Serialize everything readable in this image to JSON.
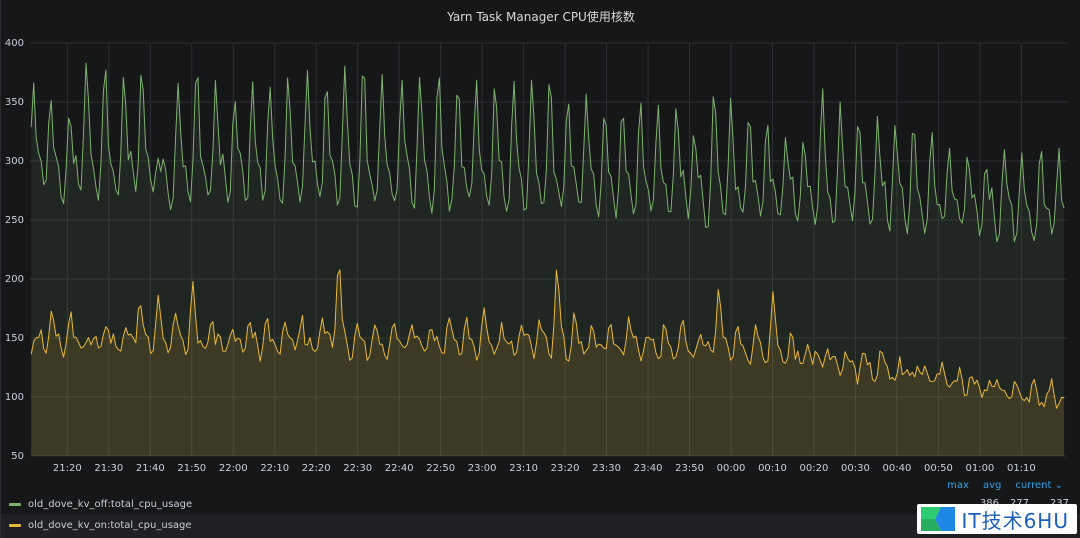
{
  "panel": {
    "title": "Yarn Task Manager CPU使用核数"
  },
  "legend": {
    "headers": [
      "max",
      "avg",
      "current"
    ],
    "series": [
      {
        "name": "old_dove_kv_off:total_cpu_usage",
        "color": "#7eb26d",
        "max": "386",
        "avg": "277",
        "current": "237"
      },
      {
        "name": "old_dove_kv_on:total_cpu_usage",
        "color": "#eab839"
      }
    ]
  },
  "watermark": {
    "text": "IT技术6HU"
  },
  "chart_data": {
    "type": "area",
    "ylim": [
      50,
      400
    ],
    "yticks": [
      50,
      100,
      150,
      200,
      250,
      300,
      350,
      400
    ],
    "grid": true,
    "legend_placement": "bottom",
    "xlabels": [
      "21:20",
      "21:30",
      "21:40",
      "21:50",
      "22:00",
      "22:10",
      "22:20",
      "22:30",
      "22:40",
      "22:50",
      "23:00",
      "23:10",
      "23:20",
      "23:30",
      "23:40",
      "23:50",
      "00:00",
      "00:10",
      "00:20",
      "00:30",
      "00:40",
      "00:50",
      "01:00",
      "01:10"
    ],
    "x_start_minutes": -9,
    "x_end_minutes": 241,
    "series": [
      {
        "name": "old_dove_kv_off:total_cpu_usage",
        "color": "#7eb26d",
        "base": [
          268,
          267,
          266,
          266,
          265,
          265,
          264,
          264,
          263,
          263,
          262,
          262,
          261,
          261,
          260,
          259,
          258,
          257,
          256,
          255,
          254,
          253,
          252,
          251,
          250,
          249,
          248,
          247,
          246,
          245,
          244,
          243,
          242,
          240,
          238,
          236,
          234,
          232,
          230,
          228
        ],
        "peaks": [
          [
            -8.2,
            370
          ],
          [
            -4.1,
            358
          ],
          [
            0.5,
            340
          ],
          [
            4.6,
            384
          ],
          [
            9.1,
            386
          ],
          [
            13.7,
            378
          ],
          [
            17.9,
            385
          ],
          [
            21.8,
            305
          ],
          [
            26.7,
            360
          ],
          [
            31.2,
            382
          ],
          [
            35.8,
            372
          ],
          [
            40.3,
            358
          ],
          [
            44.6,
            365
          ],
          [
            48.8,
            360
          ],
          [
            53.3,
            370
          ],
          [
            57.9,
            380
          ],
          [
            62.4,
            370
          ],
          [
            66.9,
            375
          ],
          [
            71.4,
            385
          ],
          [
            75.9,
            378
          ],
          [
            80.6,
            378
          ],
          [
            85.0,
            375
          ],
          [
            89.5,
            375
          ],
          [
            94.2,
            372
          ],
          [
            98.6,
            375
          ],
          [
            103.1,
            370
          ],
          [
            107.6,
            362
          ],
          [
            112.0,
            365
          ],
          [
            116.4,
            375
          ],
          [
            120.7,
            360
          ],
          [
            125.1,
            358
          ],
          [
            129.5,
            345
          ],
          [
            133.8,
            345
          ],
          [
            138.2,
            347
          ],
          [
            142.4,
            350
          ],
          [
            146.9,
            355
          ],
          [
            151.1,
            330
          ],
          [
            155.9,
            360
          ],
          [
            160.0,
            345
          ],
          [
            164.4,
            345
          ],
          [
            168.7,
            340
          ],
          [
            173.2,
            325
          ],
          [
            177.5,
            320
          ],
          [
            182.0,
            355
          ],
          [
            186.4,
            350
          ],
          [
            190.8,
            345
          ],
          [
            195.3,
            340
          ],
          [
            199.6,
            335
          ],
          [
            204.0,
            330
          ],
          [
            208.4,
            320
          ],
          [
            212.6,
            310
          ],
          [
            217.1,
            310
          ],
          [
            221.4,
            300
          ],
          [
            225.8,
            310
          ],
          [
            230.1,
            300
          ],
          [
            234.7,
            310
          ],
          [
            239.0,
            313
          ]
        ]
      },
      {
        "name": "old_dove_kv_on:total_cpu_usage",
        "color": "#eab839",
        "base": [
          138,
          138,
          137,
          137,
          137,
          136,
          136,
          136,
          136,
          136,
          136,
          136,
          135,
          135,
          135,
          135,
          135,
          135,
          135,
          134,
          134,
          134,
          133,
          133,
          132,
          131,
          130,
          128,
          126,
          124,
          121,
          118,
          115,
          112,
          109,
          106,
          103,
          100,
          97,
          94
        ],
        "peaks": [
          [
            -8.0,
            152
          ],
          [
            -3.8,
            170
          ],
          [
            0.8,
            166
          ],
          [
            5.1,
            155
          ],
          [
            9.4,
            168
          ],
          [
            14.0,
            160
          ],
          [
            17.4,
            185
          ],
          [
            21.9,
            185
          ],
          [
            26.0,
            170
          ],
          [
            30.3,
            193
          ],
          [
            34.9,
            165
          ],
          [
            39.5,
            160
          ],
          [
            43.7,
            162
          ],
          [
            48.0,
            165
          ],
          [
            52.4,
            162
          ],
          [
            56.6,
            166
          ],
          [
            61.4,
            175
          ],
          [
            65.4,
            220
          ],
          [
            69.8,
            165
          ],
          [
            74.1,
            160
          ],
          [
            78.8,
            165
          ],
          [
            83.0,
            166
          ],
          [
            87.5,
            160
          ],
          [
            91.9,
            170
          ],
          [
            96.1,
            162
          ],
          [
            100.5,
            168
          ],
          [
            104.9,
            163
          ],
          [
            109.4,
            165
          ],
          [
            113.7,
            170
          ],
          [
            118.0,
            210
          ],
          [
            122.3,
            165
          ],
          [
            126.5,
            158
          ],
          [
            130.9,
            162
          ],
          [
            135.4,
            170
          ],
          [
            139.7,
            157
          ],
          [
            144.0,
            160
          ],
          [
            148.3,
            168
          ],
          [
            152.7,
            155
          ],
          [
            157.1,
            197
          ],
          [
            161.4,
            165
          ],
          [
            165.8,
            157
          ],
          [
            170.1,
            185
          ],
          [
            174.6,
            150
          ],
          [
            178.8,
            145
          ],
          [
            183.2,
            145
          ],
          [
            187.6,
            140
          ],
          [
            191.9,
            135
          ],
          [
            196.2,
            135
          ],
          [
            200.8,
            130
          ],
          [
            205.0,
            130
          ],
          [
            209.5,
            120
          ],
          [
            213.8,
            115
          ],
          [
            218.0,
            115
          ],
          [
            222.5,
            110
          ],
          [
            226.9,
            105
          ],
          [
            231.2,
            100
          ],
          [
            235.5,
            95
          ],
          [
            239.8,
            98
          ]
        ]
      }
    ]
  }
}
